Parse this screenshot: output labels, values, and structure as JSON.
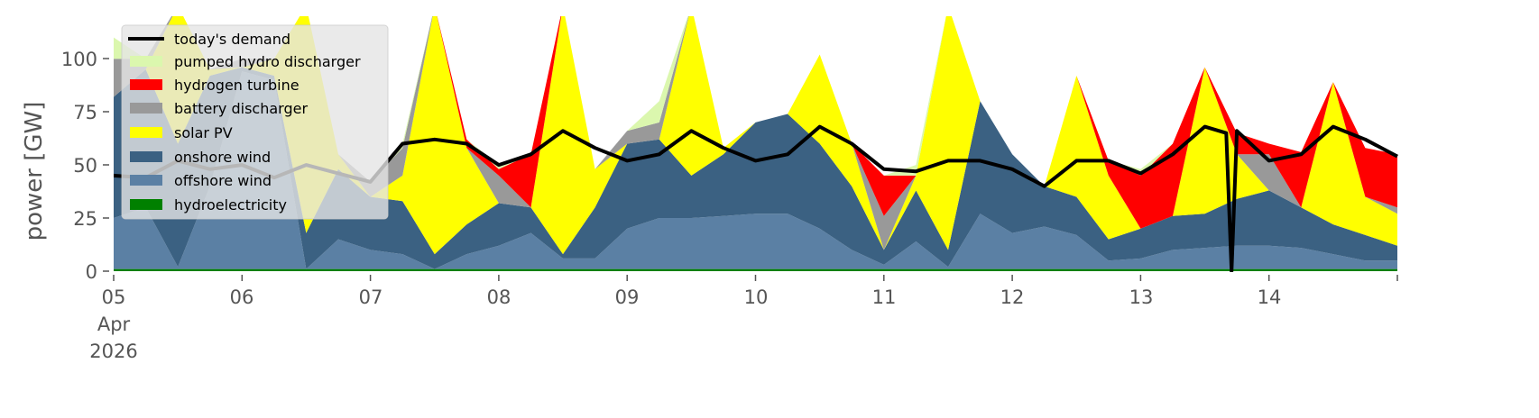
{
  "chart_data": {
    "type": "area",
    "stacked": true,
    "title": "",
    "xlabel": "",
    "ylabel": "power [GW]",
    "ylim": [
      0,
      120
    ],
    "xlim": [
      "2026-04-05 00:00",
      "2026-04-15 00:00"
    ],
    "grid": false,
    "legend_position": "top-left",
    "y_ticks": [
      "0",
      "25",
      "50",
      "75",
      "100"
    ],
    "x_tick_labels": [
      "05",
      "06",
      "07",
      "08",
      "09",
      "10",
      "11",
      "12",
      "13",
      "14"
    ],
    "x_tick_sublabels": [
      "Apr",
      "2026"
    ],
    "x": [
      "2026-04-05 00:00",
      "2026-04-05 06:00",
      "2026-04-05 12:00",
      "2026-04-05 18:00",
      "2026-04-06 00:00",
      "2026-04-06 06:00",
      "2026-04-06 12:00",
      "2026-04-06 18:00",
      "2026-04-07 00:00",
      "2026-04-07 06:00",
      "2026-04-07 12:00",
      "2026-04-07 18:00",
      "2026-04-08 00:00",
      "2026-04-08 06:00",
      "2026-04-08 12:00",
      "2026-04-08 18:00",
      "2026-04-09 00:00",
      "2026-04-09 06:00",
      "2026-04-09 12:00",
      "2026-04-09 18:00",
      "2026-04-10 00:00",
      "2026-04-10 06:00",
      "2026-04-10 12:00",
      "2026-04-10 18:00",
      "2026-04-11 00:00",
      "2026-04-11 06:00",
      "2026-04-11 12:00",
      "2026-04-11 18:00",
      "2026-04-12 00:00",
      "2026-04-12 06:00",
      "2026-04-12 12:00",
      "2026-04-12 18:00",
      "2026-04-13 00:00",
      "2026-04-13 06:00",
      "2026-04-13 12:00",
      "2026-04-13 18:00",
      "2026-04-14 00:00",
      "2026-04-14 06:00",
      "2026-04-14 12:00",
      "2026-04-14 18:00",
      "2026-04-15 00:00"
    ],
    "series": [
      {
        "name": "hydroelectricity",
        "color": "#008000",
        "values": [
          1,
          1,
          1,
          1,
          1,
          1,
          1,
          1,
          1,
          1,
          1,
          1,
          1,
          1,
          1,
          1,
          1,
          1,
          1,
          1,
          1,
          1,
          1,
          1,
          1,
          1,
          1,
          1,
          1,
          1,
          1,
          1,
          1,
          1,
          1,
          1,
          1,
          1,
          1,
          1,
          1
        ]
      },
      {
        "name": "offshore wind",
        "color": "#5b80a4",
        "values": [
          24,
          29,
          1,
          39,
          93,
          89,
          0,
          14,
          9,
          7,
          0,
          7,
          11,
          17,
          5,
          5,
          19,
          24,
          24,
          25,
          26,
          26,
          19,
          9,
          2,
          13,
          1,
          26,
          17,
          20,
          16,
          4,
          5,
          9,
          10,
          11,
          11,
          10,
          7,
          4,
          4
        ]
      },
      {
        "name": "onshore wind",
        "color": "#3b6182",
        "values": [
          57,
          65,
          58,
          52,
          2,
          2,
          17,
          33,
          25,
          25,
          7,
          14,
          20,
          12,
          2,
          24,
          40,
          37,
          20,
          29,
          43,
          47,
          40,
          30,
          7,
          24,
          8,
          53,
          37,
          19,
          18,
          10,
          14,
          16,
          16,
          22,
          26,
          19,
          14,
          12,
          7
        ]
      },
      {
        "name": "solar PV",
        "color": "#ffff00",
        "values": [
          0,
          0,
          65,
          3,
          0,
          8,
          107,
          7,
          0,
          12,
          117,
          36,
          0,
          0,
          117,
          18,
          0,
          0,
          80,
          3,
          0,
          0,
          42,
          20,
          0,
          7,
          115,
          0,
          0,
          0,
          57,
          30,
          0,
          0,
          69,
          21,
          0,
          0,
          67,
          18,
          15
        ]
      },
      {
        "name": "battery discharger",
        "color": "#999999",
        "values": [
          18,
          5,
          0,
          0,
          4,
          0,
          0,
          0,
          7,
          13,
          0,
          0,
          13,
          0,
          0,
          0,
          6,
          8,
          0,
          0,
          0,
          0,
          0,
          0,
          16,
          0,
          0,
          0,
          0,
          0,
          0,
          0,
          0,
          0,
          0,
          0,
          17,
          0,
          0,
          0,
          3
        ]
      },
      {
        "name": "hydrogen turbine",
        "color": "#ff0000",
        "values": [
          0,
          0,
          0,
          0,
          0,
          0,
          0,
          0,
          0,
          0,
          0,
          4,
          3,
          25,
          0,
          0,
          0,
          0,
          0,
          0,
          0,
          0,
          0,
          0,
          19,
          0,
          0,
          0,
          0,
          0,
          0,
          7,
          25,
          34,
          0,
          10,
          5,
          26,
          0,
          23,
          25
        ]
      },
      {
        "name": "pumped hydro discharger",
        "color": "#dbf7ae",
        "values": [
          10,
          0,
          0,
          0,
          0,
          0,
          0,
          0,
          0,
          2,
          0,
          0,
          2,
          0,
          0,
          0,
          0,
          10,
          0,
          0,
          0,
          0,
          0,
          0,
          0,
          5,
          0,
          0,
          0,
          0,
          0,
          0,
          3,
          0,
          0,
          0,
          0,
          0,
          0,
          0,
          0
        ]
      }
    ],
    "line": {
      "name": "today's demand",
      "color": "#000000",
      "x": [
        "2026-04-05 00:00",
        "2026-04-05 06:00",
        "2026-04-05 12:00",
        "2026-04-05 18:00",
        "2026-04-06 00:00",
        "2026-04-06 06:00",
        "2026-04-06 12:00",
        "2026-04-06 18:00",
        "2026-04-07 00:00",
        "2026-04-07 06:00",
        "2026-04-07 12:00",
        "2026-04-07 18:00",
        "2026-04-08 00:00",
        "2026-04-08 06:00",
        "2026-04-08 12:00",
        "2026-04-08 18:00",
        "2026-04-09 00:00",
        "2026-04-09 06:00",
        "2026-04-09 12:00",
        "2026-04-09 18:00",
        "2026-04-10 00:00",
        "2026-04-10 06:00",
        "2026-04-10 12:00",
        "2026-04-10 18:00",
        "2026-04-11 00:00",
        "2026-04-11 06:00",
        "2026-04-11 12:00",
        "2026-04-11 18:00",
        "2026-04-12 00:00",
        "2026-04-12 06:00",
        "2026-04-12 12:00",
        "2026-04-12 18:00",
        "2026-04-13 00:00",
        "2026-04-13 06:00",
        "2026-04-13 12:00",
        "2026-04-13 16:00",
        "2026-04-13 17:00",
        "2026-04-13 18:00",
        "2026-04-14 00:00",
        "2026-04-14 06:00",
        "2026-04-14 12:00",
        "2026-04-14 18:00",
        "2026-04-15 00:00"
      ],
      "values": [
        45,
        44,
        52,
        48,
        50,
        44,
        50,
        46,
        42,
        60,
        62,
        60,
        50,
        55,
        66,
        58,
        52,
        55,
        66,
        58,
        52,
        55,
        68,
        60,
        48,
        47,
        52,
        52,
        48,
        40,
        52,
        52,
        46,
        55,
        68,
        65,
        0,
        66,
        52,
        55,
        68,
        62,
        54
      ]
    }
  },
  "legend": {
    "items": [
      "today's demand",
      "pumped hydro discharger",
      "hydrogen turbine",
      "battery discharger",
      "solar PV",
      "onshore wind",
      "offshore wind",
      "hydroelectricity"
    ],
    "colors": [
      "#000000",
      "#dbf7ae",
      "#ff0000",
      "#999999",
      "#ffff00",
      "#3b6182",
      "#5b80a4",
      "#008000"
    ]
  }
}
